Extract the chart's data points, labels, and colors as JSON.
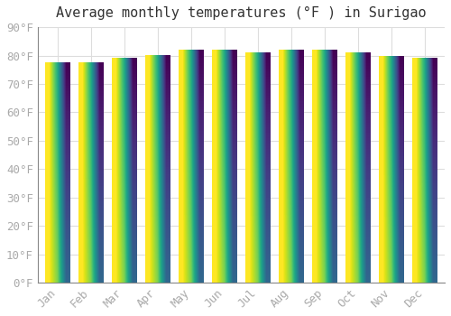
{
  "title": "Average monthly temperatures (°F ) in Surigao",
  "categories": [
    "Jan",
    "Feb",
    "Mar",
    "Apr",
    "May",
    "Jun",
    "Jul",
    "Aug",
    "Sep",
    "Oct",
    "Nov",
    "Dec"
  ],
  "values": [
    77.5,
    77.5,
    79.0,
    80.0,
    82.0,
    82.0,
    81.0,
    82.0,
    82.0,
    81.0,
    79.5,
    79.0
  ],
  "bar_color_top": "#FFA500",
  "bar_color_bottom": "#FFD070",
  "ylim": [
    0,
    90
  ],
  "ytick_step": 10,
  "background_color": "#ffffff",
  "plot_bg_color": "#ffffff",
  "grid_color": "#dddddd",
  "title_fontsize": 11,
  "tick_fontsize": 9,
  "tick_color": "#aaaaaa",
  "ylabel_format": "{0}°F"
}
